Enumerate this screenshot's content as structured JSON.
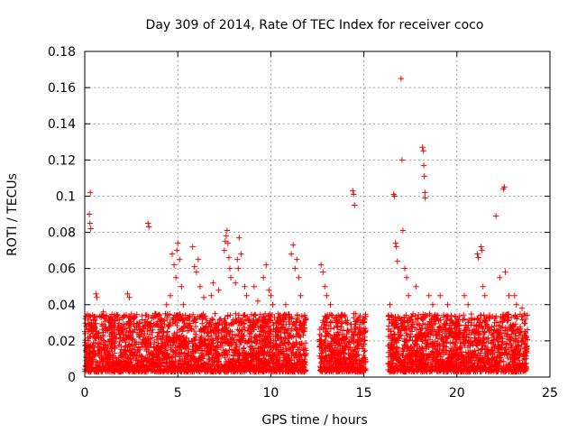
{
  "chart_data": {
    "type": "scatter",
    "title": "Day 309 of 2014, Rate Of TEC Index for receiver coco",
    "xlabel": "GPS time / hours",
    "ylabel": "ROTI / TECUs",
    "xlim": [
      0,
      25
    ],
    "ylim": [
      0,
      0.18
    ],
    "x_ticks": [
      0,
      5,
      10,
      15,
      20,
      25
    ],
    "x_tick_labels": [
      "0",
      "5",
      "10",
      "15",
      "20",
      "25"
    ],
    "y_ticks": [
      0,
      0.02,
      0.04,
      0.06,
      0.08,
      0.1,
      0.12,
      0.14,
      0.16,
      0.18
    ],
    "y_tick_labels": [
      "0",
      "0.02",
      "0.04",
      "0.06",
      "0.08",
      "0.1",
      "0.12",
      "0.14",
      "0.16",
      "0.18"
    ],
    "grid": true,
    "marker": "+",
    "color": "#ff0000",
    "data_gaps_hours": [
      [
        11.9,
        12.6
      ],
      [
        15.1,
        16.3
      ]
    ],
    "series": [
      {
        "name": "ROTI",
        "points": [
          [
            0.1,
            0.014
          ],
          [
            0.2,
            0.02
          ],
          [
            0.25,
            0.09
          ],
          [
            0.28,
            0.085
          ],
          [
            0.3,
            0.102
          ],
          [
            0.32,
            0.082
          ],
          [
            0.35,
            0.03
          ],
          [
            0.6,
            0.025
          ],
          [
            0.6,
            0.046
          ],
          [
            0.65,
            0.044
          ],
          [
            1.0,
            0.036
          ],
          [
            1.4,
            0.028
          ],
          [
            1.5,
            0.022
          ],
          [
            2.3,
            0.046
          ],
          [
            2.4,
            0.044
          ],
          [
            2.6,
            0.025
          ],
          [
            3.2,
            0.03
          ],
          [
            3.4,
            0.085
          ],
          [
            3.45,
            0.083
          ],
          [
            3.5,
            0.028
          ],
          [
            3.8,
            0.035
          ],
          [
            4.1,
            0.032
          ],
          [
            4.4,
            0.04
          ],
          [
            4.6,
            0.045
          ],
          [
            4.7,
            0.068
          ],
          [
            4.8,
            0.062
          ],
          [
            4.9,
            0.055
          ],
          [
            4.95,
            0.07
          ],
          [
            5.0,
            0.074
          ],
          [
            5.1,
            0.065
          ],
          [
            5.2,
            0.05
          ],
          [
            5.3,
            0.04
          ],
          [
            5.6,
            0.033
          ],
          [
            5.8,
            0.072
          ],
          [
            5.9,
            0.061
          ],
          [
            6.0,
            0.058
          ],
          [
            6.1,
            0.065
          ],
          [
            6.2,
            0.05
          ],
          [
            6.4,
            0.044
          ],
          [
            6.8,
            0.045
          ],
          [
            6.9,
            0.052
          ],
          [
            7.0,
            0.035
          ],
          [
            7.2,
            0.048
          ],
          [
            7.5,
            0.07
          ],
          [
            7.55,
            0.075
          ],
          [
            7.6,
            0.078
          ],
          [
            7.65,
            0.081
          ],
          [
            7.7,
            0.074
          ],
          [
            7.75,
            0.066
          ],
          [
            7.8,
            0.06
          ],
          [
            7.85,
            0.055
          ],
          [
            8.1,
            0.052
          ],
          [
            8.2,
            0.065
          ],
          [
            8.25,
            0.06
          ],
          [
            8.3,
            0.077
          ],
          [
            8.4,
            0.068
          ],
          [
            8.6,
            0.05
          ],
          [
            8.7,
            0.045
          ],
          [
            9.1,
            0.05
          ],
          [
            9.3,
            0.042
          ],
          [
            9.6,
            0.055
          ],
          [
            9.75,
            0.062
          ],
          [
            9.9,
            0.048
          ],
          [
            10.0,
            0.045
          ],
          [
            10.1,
            0.04
          ],
          [
            10.4,
            0.035
          ],
          [
            10.8,
            0.04
          ],
          [
            11.1,
            0.068
          ],
          [
            11.2,
            0.073
          ],
          [
            11.3,
            0.06
          ],
          [
            11.4,
            0.065
          ],
          [
            11.5,
            0.055
          ],
          [
            11.6,
            0.045
          ],
          [
            12.7,
            0.062
          ],
          [
            12.8,
            0.058
          ],
          [
            12.9,
            0.05
          ],
          [
            13.0,
            0.045
          ],
          [
            13.2,
            0.04
          ],
          [
            13.5,
            0.03
          ],
          [
            14.4,
            0.103
          ],
          [
            14.45,
            0.101
          ],
          [
            14.5,
            0.095
          ],
          [
            14.55,
            0.035
          ],
          [
            14.9,
            0.03
          ],
          [
            15.0,
            0.032
          ],
          [
            16.4,
            0.04
          ],
          [
            16.6,
            0.101
          ],
          [
            16.65,
            0.1
          ],
          [
            16.7,
            0.074
          ],
          [
            16.75,
            0.072
          ],
          [
            16.8,
            0.064
          ],
          [
            17.0,
            0.165
          ],
          [
            17.05,
            0.12
          ],
          [
            17.1,
            0.081
          ],
          [
            17.2,
            0.06
          ],
          [
            17.3,
            0.055
          ],
          [
            17.4,
            0.045
          ],
          [
            17.8,
            0.05
          ],
          [
            18.15,
            0.127
          ],
          [
            18.2,
            0.125
          ],
          [
            18.22,
            0.117
          ],
          [
            18.25,
            0.111
          ],
          [
            18.28,
            0.102
          ],
          [
            18.3,
            0.099
          ],
          [
            18.5,
            0.045
          ],
          [
            18.7,
            0.04
          ],
          [
            19.1,
            0.045
          ],
          [
            19.5,
            0.04
          ],
          [
            19.8,
            0.03
          ],
          [
            20.4,
            0.045
          ],
          [
            20.6,
            0.04
          ],
          [
            21.1,
            0.068
          ],
          [
            21.15,
            0.066
          ],
          [
            21.3,
            0.072
          ],
          [
            21.35,
            0.07
          ],
          [
            21.4,
            0.05
          ],
          [
            21.5,
            0.045
          ],
          [
            22.1,
            0.089
          ],
          [
            22.3,
            0.055
          ],
          [
            22.5,
            0.104
          ],
          [
            22.55,
            0.105
          ],
          [
            22.6,
            0.058
          ],
          [
            22.8,
            0.045
          ],
          [
            23.1,
            0.045
          ],
          [
            23.2,
            0.04
          ],
          [
            23.5,
            0.038
          ],
          [
            23.7,
            0.032
          ]
        ]
      }
    ],
    "dense_band_segments_hours": [
      [
        0.0,
        11.9
      ],
      [
        12.6,
        15.1
      ],
      [
        16.3,
        23.8
      ]
    ],
    "dense_band_typical_range": [
      0.003,
      0.035
    ]
  }
}
